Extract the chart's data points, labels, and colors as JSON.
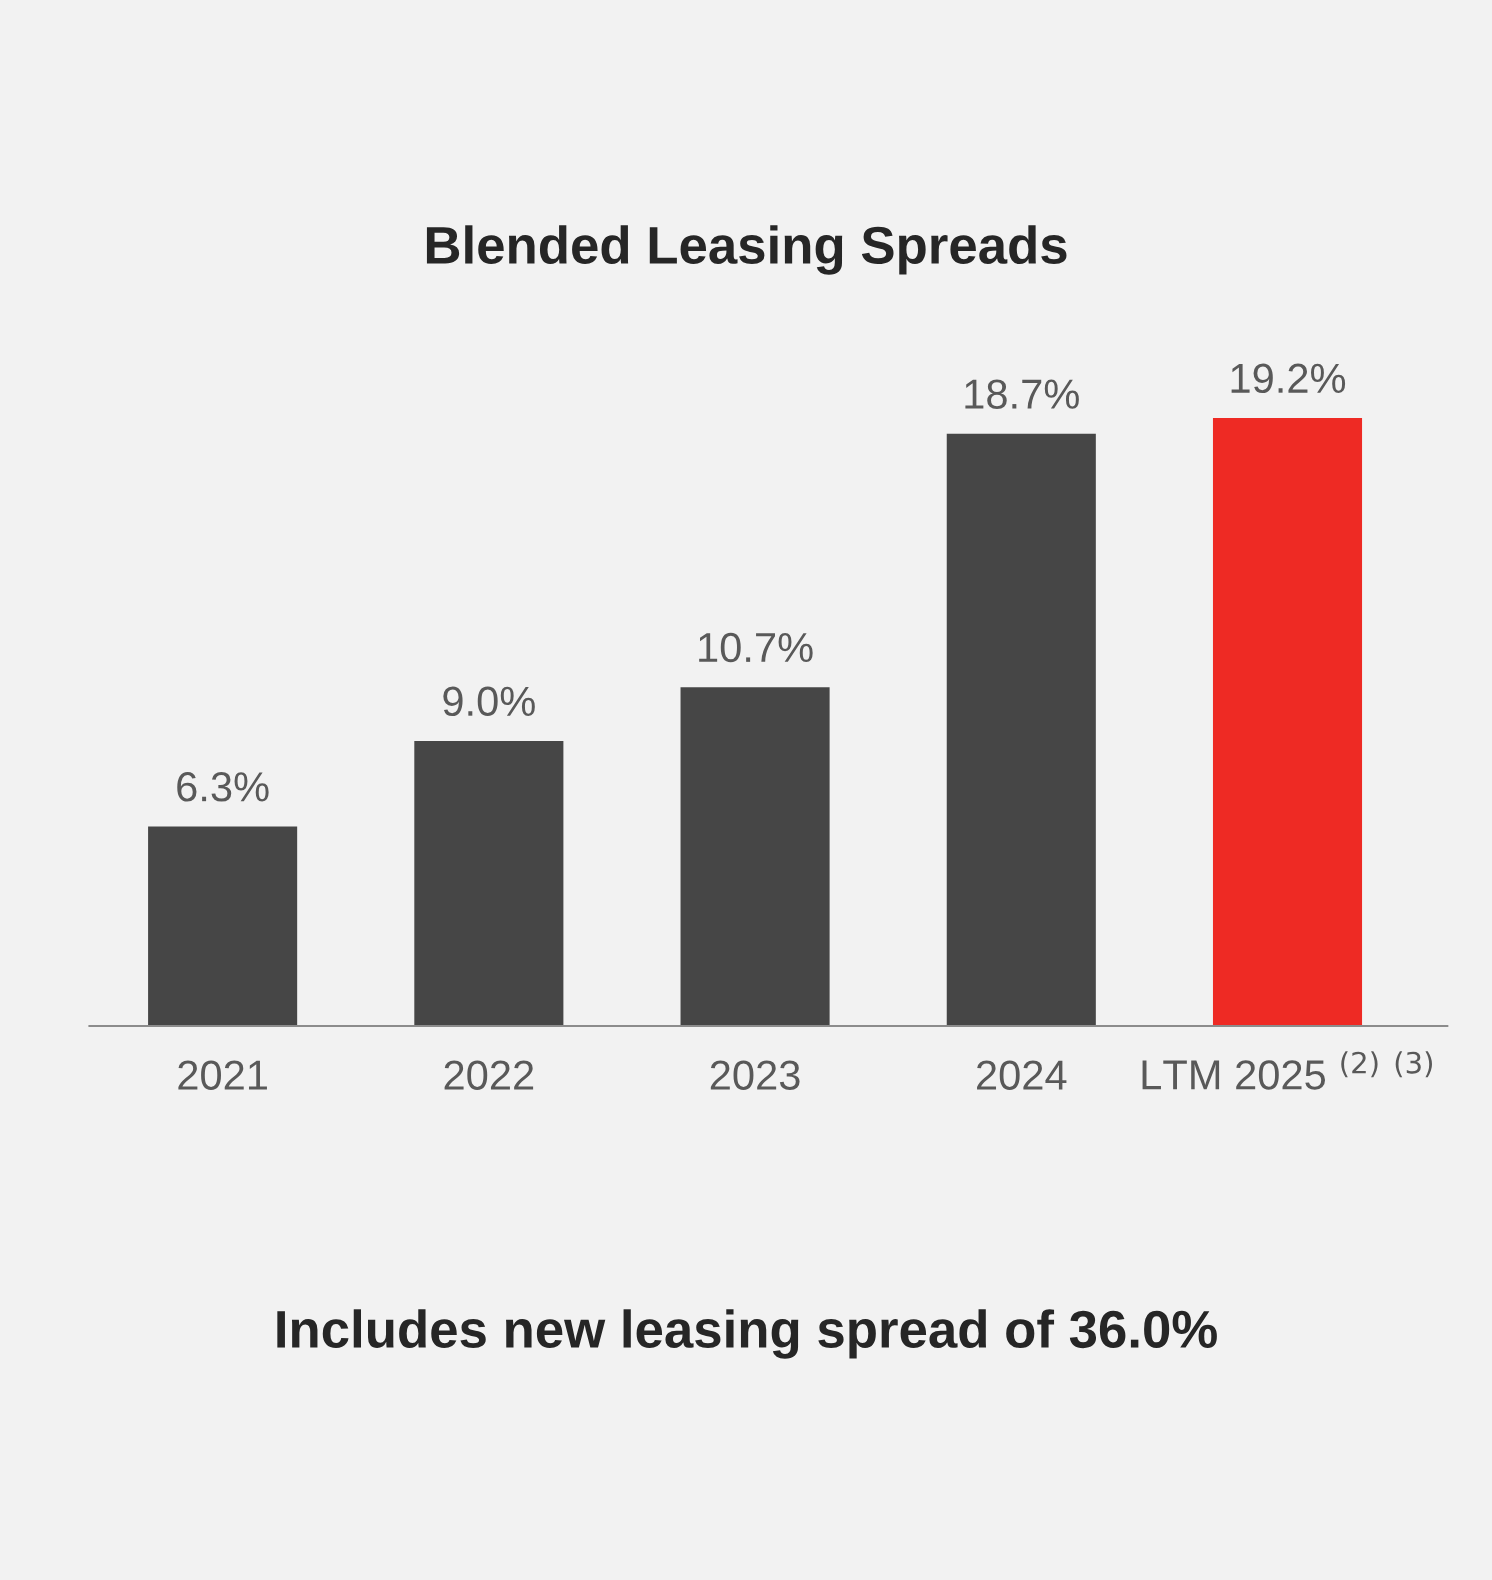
{
  "chart_data": {
    "type": "bar",
    "title": "Blended Leasing Spreads",
    "categories": [
      "2021",
      "2022",
      "2023",
      "2024",
      "LTM 2025 $^{(2)}$ $^{(3)}$"
    ],
    "values": [
      6.3,
      9.0,
      10.7,
      18.7,
      19.2
    ],
    "colors": [
      "#464646",
      "#464646",
      "#464646",
      "#464646",
      "#ee2a24"
    ],
    "value_labels": [
      "6.3%",
      "9.0%",
      "10.7%",
      "18.7%",
      "19.2%"
    ],
    "annotations": [
      "Includes new leasing spread of 36.0%"
    ],
    "grid": false,
    "legend": false
  }
}
